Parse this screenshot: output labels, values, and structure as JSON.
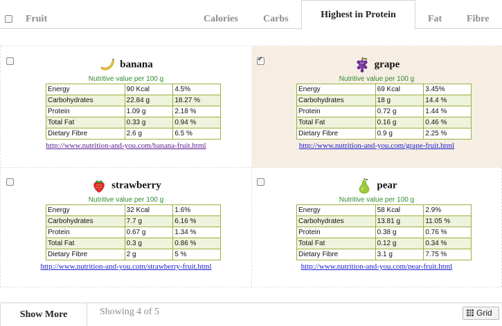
{
  "header": {
    "columns": {
      "fruit": "Fruit",
      "calories": "Calories",
      "carbs": "Carbs",
      "protein": "Highest in Protein",
      "fat": "Fat",
      "fibre": "Fibre"
    }
  },
  "cards": [
    {
      "name": "banana",
      "icon": "banana-icon",
      "checked": false,
      "subtitle": "Nutritive value per 100 g",
      "rows": [
        {
          "label": "Energy",
          "amount": "90 Kcal",
          "percent": "4.5%"
        },
        {
          "label": "Carbohydrates",
          "amount": "22.84 g",
          "percent": "18.27 %"
        },
        {
          "label": "Protein",
          "amount": "1.09 g",
          "percent": "2.18 %"
        },
        {
          "label": "Total Fat",
          "amount": "0.33 g",
          "percent": "0.94 %"
        },
        {
          "label": "Dietary Fibre",
          "amount": "2.6 g",
          "percent": "6.5 %"
        }
      ],
      "link": "http://www.nutrition-and-you.com/banana-fruit.html"
    },
    {
      "name": "grape",
      "icon": "grape-icon",
      "checked": true,
      "subtitle": "Nutritive value per 100 g",
      "rows": [
        {
          "label": "Energy",
          "amount": "69 Kcal",
          "percent": "3.45%"
        },
        {
          "label": "Carbohydrates",
          "amount": "18 g",
          "percent": "14.4 %"
        },
        {
          "label": "Protein",
          "amount": "0.72 g",
          "percent": "1.44 %"
        },
        {
          "label": "Total Fat",
          "amount": "0.16 g",
          "percent": "0.46 %"
        },
        {
          "label": "Dietary Fibre",
          "amount": "0.9 g",
          "percent": "2.25 %"
        }
      ],
      "link": "http://www.nutrition-and-you.com/grape-fruit.html"
    },
    {
      "name": "strawberry",
      "icon": "strawberry-icon",
      "checked": false,
      "subtitle": "Nutritive value per 100 g",
      "rows": [
        {
          "label": "Energy",
          "amount": "32 Kcal",
          "percent": "1.6%"
        },
        {
          "label": "Carbohydrates",
          "amount": "7.7 g",
          "percent": "6.16 %"
        },
        {
          "label": "Protein",
          "amount": "0.67 g",
          "percent": "1.34 %"
        },
        {
          "label": "Total Fat",
          "amount": "0.3 g",
          "percent": "0.86 %"
        },
        {
          "label": "Dietary Fibre",
          "amount": "2 g",
          "percent": "5 %"
        }
      ],
      "link": "http://www.nutrition-and-you.com/strawberry-fruit.html"
    },
    {
      "name": "pear",
      "icon": "pear-icon",
      "checked": false,
      "subtitle": "Nutritive value per 100 g",
      "rows": [
        {
          "label": "Energy",
          "amount": "58 Kcal",
          "percent": "2.9%"
        },
        {
          "label": "Carbohydrates",
          "amount": "13.81 g",
          "percent": "11.05 %"
        },
        {
          "label": "Protein",
          "amount": "0.38 g",
          "percent": "0.76 %"
        },
        {
          "label": "Total Fat",
          "amount": "0.12 g",
          "percent": "0.34 %"
        },
        {
          "label": "Dietary Fibre",
          "amount": "3.1 g",
          "percent": "7.75 %"
        }
      ],
      "link": "http://www.nutrition-and-you.com/pear-fruit.html"
    }
  ],
  "footer": {
    "show_more": "Show More",
    "showing": "Showing 4 of 5",
    "view_toggle": "Grid",
    "view_icon": "grid-icon"
  },
  "colors": {
    "selected_background": "#f7eee3",
    "table_border": "#9aaf3a",
    "subtitle": "#2f8a2f",
    "link": "#1a1acc",
    "visited_link": "#551a8b"
  }
}
